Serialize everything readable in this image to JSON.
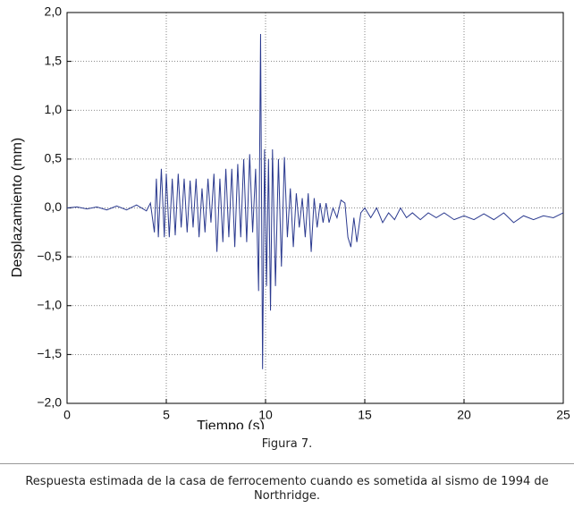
{
  "chart_data": {
    "type": "line",
    "xlabel": "Tiempo (s)",
    "ylabel": "Desplazamiento (mm)",
    "x": [
      0,
      0.5,
      1,
      1.5,
      2,
      2.5,
      3,
      3.5,
      4,
      4.2,
      4.4,
      4.5,
      4.6,
      4.75,
      4.9,
      5.0,
      5.15,
      5.3,
      5.45,
      5.6,
      5.75,
      5.9,
      6.05,
      6.2,
      6.35,
      6.5,
      6.65,
      6.8,
      6.95,
      7.1,
      7.25,
      7.4,
      7.55,
      7.7,
      7.85,
      8.0,
      8.15,
      8.3,
      8.45,
      8.6,
      8.75,
      8.9,
      9.05,
      9.2,
      9.35,
      9.5,
      9.65,
      9.75,
      9.85,
      9.95,
      10.05,
      10.15,
      10.25,
      10.35,
      10.5,
      10.65,
      10.8,
      10.95,
      11.1,
      11.25,
      11.4,
      11.55,
      11.7,
      11.85,
      12.0,
      12.15,
      12.3,
      12.45,
      12.6,
      12.75,
      12.9,
      13.05,
      13.2,
      13.4,
      13.6,
      13.8,
      14.0,
      14.15,
      14.3,
      14.45,
      14.6,
      14.8,
      15.0,
      15.3,
      15.6,
      15.9,
      16.2,
      16.5,
      16.8,
      17.1,
      17.4,
      17.8,
      18.2,
      18.6,
      19.0,
      19.5,
      20.0,
      20.5,
      21.0,
      21.5,
      22.0,
      22.5,
      23.0,
      23.5,
      24.0,
      24.5,
      25.0
    ],
    "series": [
      {
        "color": "#2b3a8f",
        "values": [
          0,
          0.01,
          -0.01,
          0.01,
          -0.02,
          0.02,
          -0.02,
          0.03,
          -0.03,
          0.05,
          -0.25,
          0.3,
          -0.3,
          0.4,
          -0.3,
          0.35,
          -0.3,
          0.3,
          -0.28,
          0.35,
          -0.2,
          0.3,
          -0.25,
          0.28,
          -0.2,
          0.3,
          -0.3,
          0.2,
          -0.25,
          0.3,
          -0.15,
          0.35,
          -0.45,
          0.3,
          -0.35,
          0.4,
          -0.3,
          0.4,
          -0.4,
          0.45,
          -0.3,
          0.5,
          -0.35,
          0.55,
          -0.25,
          0.4,
          -0.85,
          1.78,
          -1.65,
          0.6,
          -0.8,
          0.5,
          -1.05,
          0.6,
          -0.8,
          0.5,
          -0.6,
          0.52,
          -0.3,
          0.2,
          -0.4,
          0.15,
          -0.2,
          0.1,
          -0.3,
          0.15,
          -0.45,
          0.1,
          -0.2,
          0.05,
          -0.15,
          0.05,
          -0.15,
          0.0,
          -0.1,
          0.08,
          0.05,
          -0.3,
          -0.4,
          -0.1,
          -0.35,
          -0.05,
          0.0,
          -0.1,
          0.0,
          -0.15,
          -0.05,
          -0.12,
          0.0,
          -0.1,
          -0.05,
          -0.12,
          -0.05,
          -0.1,
          -0.05,
          -0.12,
          -0.08,
          -0.12,
          -0.06,
          -0.12,
          -0.05,
          -0.15,
          -0.08,
          -0.12,
          -0.08,
          -0.1,
          -0.05
        ]
      }
    ],
    "xlim": [
      0,
      25
    ],
    "xticks": [
      0,
      5,
      10,
      15,
      20,
      25
    ],
    "ylim": [
      -2,
      2
    ],
    "yticks": [
      {
        "value": 2,
        "label": "2,0"
      },
      {
        "value": 1.5,
        "label": "1,5"
      },
      {
        "value": 1,
        "label": "1,0"
      },
      {
        "value": 0.5,
        "label": "0,5"
      },
      {
        "value": 0,
        "label": "0,0"
      },
      {
        "value": -0.5,
        "label": "−0,5"
      },
      {
        "value": -1,
        "label": "−1,0"
      },
      {
        "value": -1.5,
        "label": "−1,5"
      },
      {
        "value": -2,
        "label": "−2,0"
      }
    ],
    "grid": true
  },
  "caption": {
    "figure": "Figura 7.",
    "text": "Respuesta estimada de la casa de ferrocemento cuando es sometida al sismo de 1994 de Northridge."
  }
}
